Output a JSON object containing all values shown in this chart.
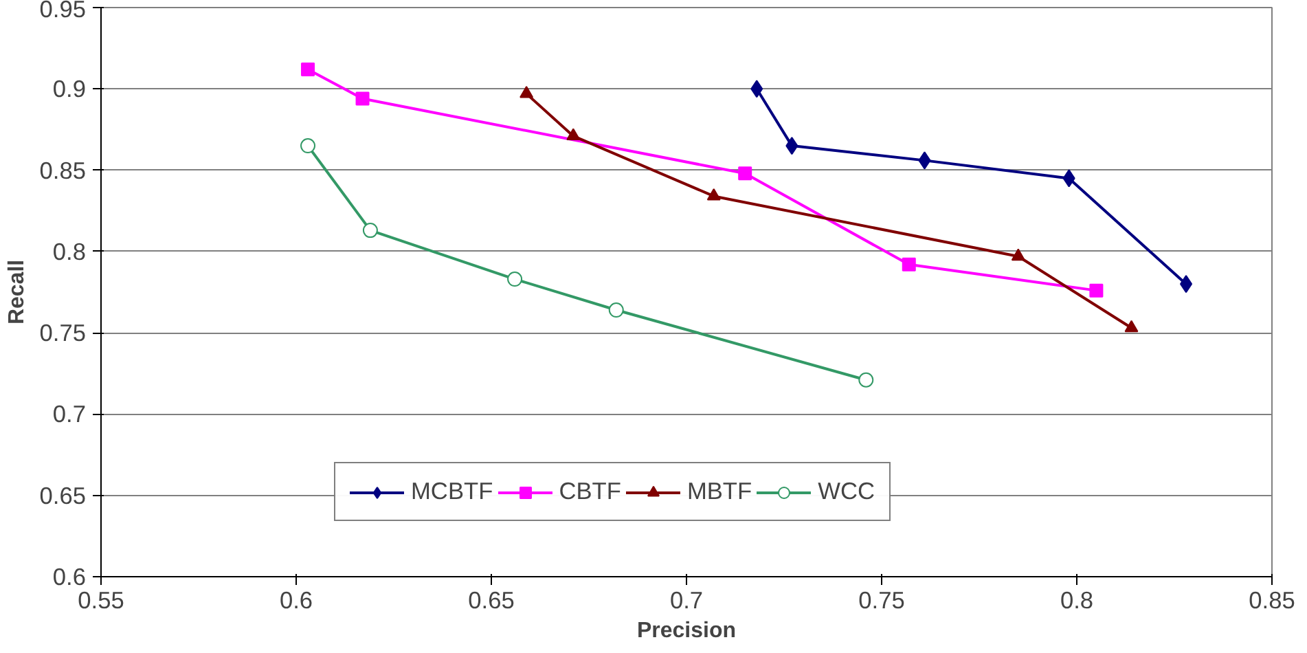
{
  "chart_data": {
    "type": "line",
    "xlabel": "Precision",
    "ylabel": "Recall",
    "xlim": [
      0.55,
      0.85
    ],
    "xticks": [
      0.55,
      0.6,
      0.65,
      0.7,
      0.75,
      0.8,
      0.85
    ],
    "ylim": [
      0.6,
      0.95
    ],
    "yticks": [
      0.6,
      0.65,
      0.7,
      0.75,
      0.8,
      0.85,
      0.9,
      0.95
    ],
    "grid": "y",
    "legend": "bottom",
    "series": [
      {
        "name": "MCBTF",
        "color": "#000080",
        "marker": "diamond",
        "x": [
          0.718,
          0.727,
          0.761,
          0.798,
          0.828
        ],
        "values": [
          0.9,
          0.865,
          0.856,
          0.845,
          0.78
        ]
      },
      {
        "name": "CBTF",
        "color": "#ff00ff",
        "marker": "square",
        "x": [
          0.603,
          0.617,
          0.715,
          0.757,
          0.805
        ],
        "values": [
          0.912,
          0.894,
          0.848,
          0.792,
          0.776
        ]
      },
      {
        "name": "MBTF",
        "color": "#800000",
        "marker": "triangle",
        "x": [
          0.659,
          0.671,
          0.707,
          0.785,
          0.814
        ],
        "values": [
          0.897,
          0.871,
          0.834,
          0.797,
          0.753
        ]
      },
      {
        "name": "WCC",
        "color": "#339966",
        "marker": "circle",
        "x": [
          0.603,
          0.619,
          0.656,
          0.682,
          0.746
        ],
        "values": [
          0.865,
          0.813,
          0.783,
          0.764,
          0.721
        ]
      }
    ]
  }
}
